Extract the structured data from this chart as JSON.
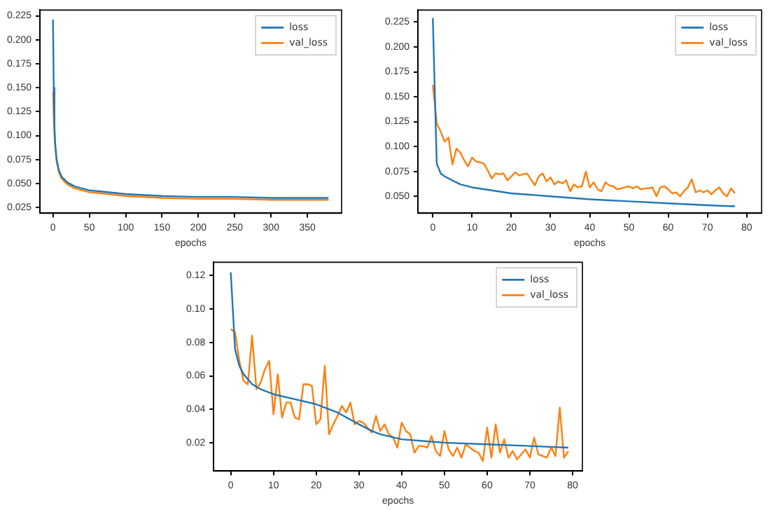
{
  "chart_data": [
    {
      "type": "line",
      "xlabel": "epochs",
      "legend": "top right",
      "grid": false,
      "xlim": [
        -18,
        397
      ],
      "xticks": [
        0,
        50,
        100,
        150,
        200,
        250,
        300,
        350
      ],
      "ylim": [
        0.019,
        0.231
      ],
      "yticks": [
        {
          "value": 0.025,
          "label": "0.025"
        },
        {
          "value": 0.05,
          "label": "0.050"
        },
        {
          "value": 0.075,
          "label": "0.075"
        },
        {
          "value": 0.1,
          "label": "0.100"
        },
        {
          "value": 0.125,
          "label": "0.125"
        },
        {
          "value": 0.15,
          "label": "0.150"
        },
        {
          "value": 0.175,
          "label": "0.175"
        },
        {
          "value": 0.2,
          "label": "0.200"
        },
        {
          "value": 0.225,
          "label": "0.225"
        }
      ],
      "series": [
        {
          "name": "loss",
          "color": "#1f77b4",
          "x": [
            0,
            1,
            2,
            3,
            5,
            8,
            12,
            20,
            30,
            50,
            75,
            100,
            150,
            200,
            250,
            300,
            379
          ],
          "values": [
            0.221,
            0.15,
            0.11,
            0.092,
            0.075,
            0.064,
            0.057,
            0.051,
            0.047,
            0.043,
            0.041,
            0.039,
            0.037,
            0.036,
            0.036,
            0.035,
            0.035
          ]
        },
        {
          "name": "val_loss",
          "color": "#ff7f0e",
          "x": [
            0,
            1,
            2,
            3,
            5,
            8,
            12,
            20,
            30,
            50,
            75,
            100,
            150,
            200,
            250,
            300,
            379
          ],
          "values": [
            0.146,
            0.12,
            0.1,
            0.088,
            0.073,
            0.062,
            0.055,
            0.049,
            0.045,
            0.041,
            0.039,
            0.037,
            0.035,
            0.034,
            0.034,
            0.033,
            0.033
          ]
        }
      ]
    },
    {
      "type": "line",
      "xlabel": "epochs",
      "legend": "top right",
      "grid": false,
      "xlim": [
        -3.8,
        83.8
      ],
      "xticks": [
        0,
        10,
        20,
        30,
        40,
        50,
        60,
        70,
        80
      ],
      "ylim": [
        0.033,
        0.237
      ],
      "yticks": [
        {
          "value": 0.05,
          "label": "0.050"
        },
        {
          "value": 0.075,
          "label": "0.075"
        },
        {
          "value": 0.1,
          "label": "0.100"
        },
        {
          "value": 0.125,
          "label": "0.125"
        },
        {
          "value": 0.15,
          "label": "0.150"
        },
        {
          "value": 0.175,
          "label": "0.175"
        },
        {
          "value": 0.2,
          "label": "0.200"
        },
        {
          "value": 0.225,
          "label": "0.225"
        }
      ],
      "series": [
        {
          "name": "loss",
          "color": "#1f77b4",
          "x": [
            0,
            1,
            2,
            3,
            5,
            7,
            10,
            15,
            20,
            30,
            40,
            50,
            60,
            70,
            77
          ],
          "values": [
            0.229,
            0.083,
            0.073,
            0.07,
            0.066,
            0.062,
            0.059,
            0.056,
            0.053,
            0.05,
            0.047,
            0.045,
            0.043,
            0.041,
            0.04
          ]
        },
        {
          "name": "val_loss",
          "color": "#ff7f0e",
          "x": [
            0,
            1,
            2,
            3,
            4,
            5,
            6,
            7,
            8,
            9,
            10,
            11,
            12,
            13,
            14,
            15,
            16,
            17,
            18,
            19,
            20,
            21,
            22,
            23,
            24,
            25,
            26,
            27,
            28,
            29,
            30,
            31,
            32,
            33,
            34,
            35,
            36,
            37,
            38,
            39,
            40,
            41,
            42,
            43,
            44,
            45,
            46,
            47,
            48,
            49,
            50,
            51,
            52,
            53,
            54,
            55,
            56,
            57,
            58,
            59,
            60,
            61,
            62,
            63,
            64,
            65,
            66,
            67,
            68,
            69,
            70,
            71,
            72,
            73,
            74,
            75,
            76,
            77
          ],
          "values": [
            0.162,
            0.123,
            0.115,
            0.105,
            0.109,
            0.082,
            0.098,
            0.094,
            0.086,
            0.08,
            0.089,
            0.085,
            0.084,
            0.083,
            0.076,
            0.068,
            0.073,
            0.072,
            0.073,
            0.066,
            0.07,
            0.074,
            0.071,
            0.072,
            0.073,
            0.067,
            0.061,
            0.07,
            0.073,
            0.065,
            0.069,
            0.062,
            0.065,
            0.063,
            0.066,
            0.055,
            0.062,
            0.059,
            0.06,
            0.075,
            0.059,
            0.064,
            0.057,
            0.055,
            0.064,
            0.061,
            0.06,
            0.057,
            0.058,
            0.059,
            0.06,
            0.058,
            0.06,
            0.057,
            0.058,
            0.058,
            0.059,
            0.05,
            0.059,
            0.06,
            0.057,
            0.053,
            0.054,
            0.05,
            0.055,
            0.059,
            0.067,
            0.054,
            0.056,
            0.054,
            0.056,
            0.052,
            0.056,
            0.059,
            0.053,
            0.05,
            0.058,
            0.053
          ]
        }
      ]
    },
    {
      "type": "line",
      "xlabel": "epochs",
      "legend": "top right",
      "grid": false,
      "xlim": [
        -4,
        82.3
      ],
      "xticks": [
        0,
        10,
        20,
        30,
        40,
        50,
        60,
        70,
        80
      ],
      "ylim": [
        0.003,
        0.128
      ],
      "yticks": [
        {
          "value": 0.02,
          "label": "0.02"
        },
        {
          "value": 0.04,
          "label": "0.04"
        },
        {
          "value": 0.06,
          "label": "0.06"
        },
        {
          "value": 0.08,
          "label": "0.08"
        },
        {
          "value": 0.1,
          "label": "0.10"
        },
        {
          "value": 0.12,
          "label": "0.12"
        }
      ],
      "series": [
        {
          "name": "loss",
          "color": "#1f77b4",
          "x": [
            0,
            1,
            2,
            3,
            4,
            5,
            7,
            10,
            15,
            20,
            25,
            30,
            33,
            35,
            40,
            45,
            50,
            60,
            70,
            79
          ],
          "values": [
            0.122,
            0.076,
            0.066,
            0.061,
            0.058,
            0.055,
            0.052,
            0.049,
            0.046,
            0.043,
            0.038,
            0.031,
            0.027,
            0.025,
            0.022,
            0.021,
            0.02,
            0.019,
            0.018,
            0.017
          ]
        },
        {
          "name": "val_loss",
          "color": "#ff7f0e",
          "x": [
            0,
            1,
            2,
            3,
            4,
            5,
            6,
            7,
            8,
            9,
            10,
            11,
            12,
            13,
            14,
            15,
            16,
            17,
            18,
            19,
            20,
            21,
            22,
            23,
            24,
            25,
            26,
            27,
            28,
            29,
            30,
            31,
            32,
            33,
            34,
            35,
            36,
            37,
            38,
            39,
            40,
            41,
            42,
            43,
            44,
            45,
            46,
            47,
            48,
            49,
            50,
            51,
            52,
            53,
            54,
            55,
            56,
            57,
            58,
            59,
            60,
            61,
            62,
            63,
            64,
            65,
            66,
            67,
            68,
            69,
            70,
            71,
            72,
            73,
            74,
            75,
            76,
            77,
            78,
            79
          ],
          "values": [
            0.088,
            0.086,
            0.069,
            0.057,
            0.055,
            0.084,
            0.052,
            0.056,
            0.064,
            0.069,
            0.037,
            0.061,
            0.035,
            0.044,
            0.044,
            0.035,
            0.034,
            0.055,
            0.055,
            0.054,
            0.031,
            0.034,
            0.066,
            0.025,
            0.031,
            0.036,
            0.042,
            0.038,
            0.044,
            0.031,
            0.033,
            0.032,
            0.029,
            0.026,
            0.036,
            0.027,
            0.031,
            0.025,
            0.023,
            0.017,
            0.032,
            0.027,
            0.025,
            0.014,
            0.018,
            0.018,
            0.017,
            0.024,
            0.015,
            0.012,
            0.027,
            0.016,
            0.012,
            0.017,
            0.011,
            0.019,
            0.017,
            0.015,
            0.014,
            0.009,
            0.029,
            0.011,
            0.031,
            0.014,
            0.022,
            0.011,
            0.015,
            0.01,
            0.013,
            0.016,
            0.011,
            0.023,
            0.013,
            0.012,
            0.011,
            0.017,
            0.012,
            0.041,
            0.011,
            0.015
          ]
        }
      ]
    }
  ]
}
